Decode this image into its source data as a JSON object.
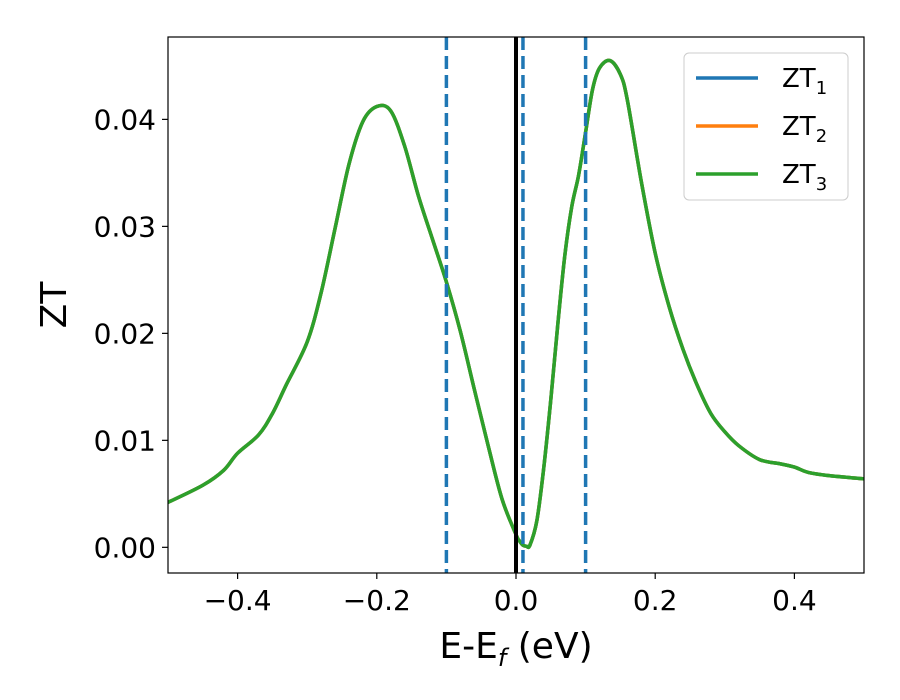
{
  "chart_data": {
    "type": "line",
    "title": "",
    "xlabel": {
      "main": "E-E",
      "sub": "f",
      "tail": " (eV)"
    },
    "ylabel": "ZT",
    "xlim": [
      -0.5,
      0.5
    ],
    "ylim": [
      -0.0024,
      0.0477
    ],
    "xticks": [
      -0.4,
      -0.2,
      0.0,
      0.2,
      0.4
    ],
    "xtick_labels": [
      "−0.4",
      "−0.2",
      "0.0",
      "0.2",
      "0.4"
    ],
    "yticks": [
      0.0,
      0.01,
      0.02,
      0.03,
      0.04
    ],
    "ytick_labels": [
      "0.00",
      "0.01",
      "0.02",
      "0.03",
      "0.04"
    ],
    "grid": false,
    "legend_position": "top-right",
    "vlines": [
      {
        "x": 0.0,
        "style": "solid",
        "color": "#000000"
      },
      {
        "x": -0.1,
        "style": "dashed",
        "color": "#1f77b4"
      },
      {
        "x": 0.01,
        "style": "dashed",
        "color": "#1f77b4"
      },
      {
        "x": 0.1,
        "style": "dashed",
        "color": "#1f77b4"
      }
    ],
    "x": [
      -0.5,
      -0.45,
      -0.42,
      -0.4,
      -0.37,
      -0.35,
      -0.33,
      -0.3,
      -0.28,
      -0.26,
      -0.24,
      -0.22,
      -0.2,
      -0.18,
      -0.16,
      -0.14,
      -0.12,
      -0.1,
      -0.08,
      -0.06,
      -0.04,
      -0.02,
      0.0,
      0.005,
      0.01,
      0.015,
      0.02,
      0.03,
      0.04,
      0.05,
      0.06,
      0.07,
      0.08,
      0.09,
      0.1,
      0.11,
      0.12,
      0.135,
      0.15,
      0.16,
      0.18,
      0.2,
      0.22,
      0.24,
      0.26,
      0.28,
      0.3,
      0.32,
      0.35,
      0.38,
      0.4,
      0.42,
      0.45,
      0.5
    ],
    "series": [
      {
        "name": "ZT",
        "sub": "1",
        "color": "#1f77b4",
        "values": [
          0.0042,
          0.0058,
          0.0072,
          0.0088,
          0.0105,
          0.0125,
          0.0152,
          0.0192,
          0.0238,
          0.0298,
          0.0358,
          0.0398,
          0.0412,
          0.0408,
          0.0375,
          0.0328,
          0.0288,
          0.0248,
          0.0202,
          0.0148,
          0.0095,
          0.0045,
          0.0012,
          0.0006,
          0.0002,
          0.0001,
          0.0002,
          0.0025,
          0.0075,
          0.0138,
          0.0208,
          0.0272,
          0.0318,
          0.0348,
          0.0388,
          0.0428,
          0.0448,
          0.0455,
          0.0442,
          0.0418,
          0.0342,
          0.0275,
          0.0225,
          0.0185,
          0.0152,
          0.0125,
          0.0108,
          0.0095,
          0.0082,
          0.0078,
          0.0075,
          0.007,
          0.0067,
          0.0064
        ]
      },
      {
        "name": "ZT",
        "sub": "2",
        "color": "#ff7f0e",
        "values": [
          0.0042,
          0.0058,
          0.0072,
          0.0088,
          0.0105,
          0.0125,
          0.0152,
          0.0192,
          0.0238,
          0.0298,
          0.0358,
          0.0398,
          0.0412,
          0.0408,
          0.0375,
          0.0328,
          0.0288,
          0.0248,
          0.0202,
          0.0148,
          0.0095,
          0.0045,
          0.0012,
          0.0006,
          0.0002,
          0.0001,
          0.0002,
          0.0025,
          0.0075,
          0.0138,
          0.0208,
          0.0272,
          0.0318,
          0.0348,
          0.0388,
          0.0428,
          0.0448,
          0.0455,
          0.0442,
          0.0418,
          0.0342,
          0.0275,
          0.0225,
          0.0185,
          0.0152,
          0.0125,
          0.0108,
          0.0095,
          0.0082,
          0.0078,
          0.0075,
          0.007,
          0.0067,
          0.0064
        ]
      },
      {
        "name": "ZT",
        "sub": "3",
        "color": "#2ca02c",
        "values": [
          0.0042,
          0.0058,
          0.0072,
          0.0088,
          0.0105,
          0.0125,
          0.0152,
          0.0192,
          0.0238,
          0.0298,
          0.0358,
          0.0398,
          0.0412,
          0.0408,
          0.0375,
          0.0328,
          0.0288,
          0.0248,
          0.0202,
          0.0148,
          0.0095,
          0.0045,
          0.0012,
          0.0006,
          0.0002,
          0.0001,
          0.0002,
          0.0025,
          0.0075,
          0.0138,
          0.0208,
          0.0272,
          0.0318,
          0.0348,
          0.0388,
          0.0428,
          0.0448,
          0.0455,
          0.0442,
          0.0418,
          0.0342,
          0.0275,
          0.0225,
          0.0185,
          0.0152,
          0.0125,
          0.0108,
          0.0095,
          0.0082,
          0.0078,
          0.0075,
          0.007,
          0.0067,
          0.0064
        ]
      }
    ]
  }
}
